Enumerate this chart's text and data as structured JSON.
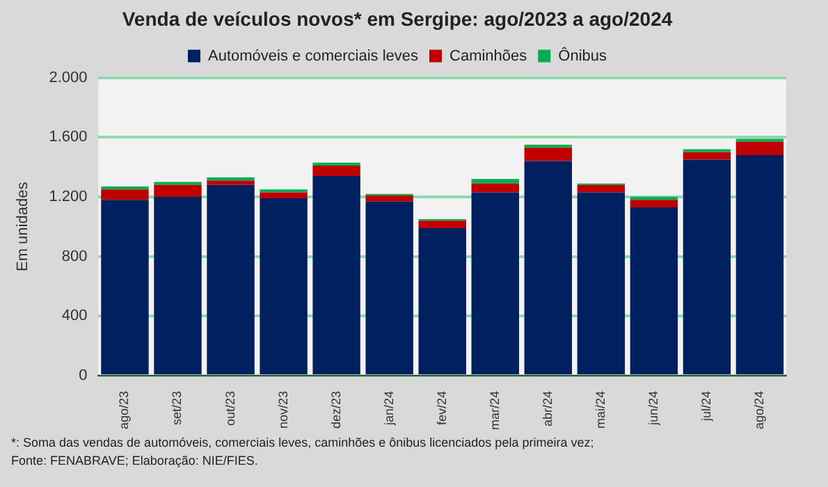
{
  "chart_data": {
    "type": "bar",
    "title": "Venda de veículos novos* em Sergipe: ago/2023 a ago/2024",
    "categories": [
      "ago/23",
      "set/23",
      "out/23",
      "nov/23",
      "dez/23",
      "jan/24",
      "fev/24",
      "mar/24",
      "abr/24",
      "mai/24",
      "jun/24",
      "jul/24",
      "ago/24"
    ],
    "series": [
      {
        "name": "Automóveis e comerciais leves",
        "color": "#002060",
        "values": [
          1180,
          1200,
          1280,
          1190,
          1340,
          1170,
          990,
          1230,
          1440,
          1230,
          1130,
          1450,
          1480
        ]
      },
      {
        "name": "Caminhões",
        "color": "#c00000",
        "values": [
          70,
          80,
          30,
          40,
          70,
          40,
          50,
          60,
          90,
          50,
          50,
          50,
          90
        ]
      },
      {
        "name": "Ônibus",
        "color": "#00b050",
        "values": [
          20,
          20,
          20,
          20,
          20,
          10,
          10,
          30,
          20,
          10,
          20,
          20,
          20
        ]
      }
    ],
    "stacked": true,
    "ylabel": "Em unidades",
    "ylim": [
      0,
      2000
    ],
    "yticks": [
      0,
      {
        "value": 400,
        "label": "400"
      },
      {
        "value": 800,
        "label": "800"
      },
      {
        "value": 1200,
        "label": "1.200"
      },
      {
        "value": 1600,
        "label": "1.600"
      },
      {
        "value": 2000,
        "label": "2.000"
      }
    ],
    "grid": "y",
    "legend": "top",
    "annotations": [
      "*: Soma das vendas de automóveis, comerciais leves, caminhões e ônibus licenciados pela primeira vez;",
      "Fonte: FENABRAVE; Elaboração: NIE/FIES."
    ]
  }
}
